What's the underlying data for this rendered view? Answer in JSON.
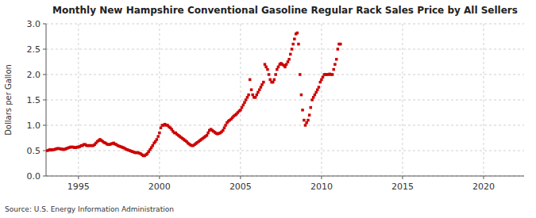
{
  "chart_data": {
    "type": "scatter",
    "title": "Monthly New Hampshire Conventional Gasoline Regular Rack Sales Price by All Sellers",
    "ylabel": "Dollars per Gallon",
    "source": "Source: U.S. Energy Information Administration",
    "color": "#cc0000",
    "marker": "square",
    "grid": true,
    "xlim": [
      1993.0,
      2022.5
    ],
    "ylim": [
      0.0,
      3.0
    ],
    "xticks": [
      1995,
      2000,
      2005,
      2010,
      2015,
      2020
    ],
    "yticks": [
      {
        "value": 0.0,
        "label": "0.0"
      },
      0.5,
      {
        "value": 1.0,
        "label": "1.0"
      },
      1.5,
      {
        "value": 2.0,
        "label": "2.0"
      },
      2.5,
      {
        "value": 3.0,
        "label": "3.0"
      }
    ],
    "x": [
      1993.08,
      1993.17,
      1993.25,
      1993.33,
      1993.42,
      1993.5,
      1993.58,
      1993.67,
      1993.75,
      1993.83,
      1993.92,
      1994.0,
      1994.08,
      1994.17,
      1994.25,
      1994.33,
      1994.42,
      1994.5,
      1994.58,
      1994.67,
      1994.75,
      1994.83,
      1994.92,
      1995.0,
      1995.08,
      1995.17,
      1995.25,
      1995.33,
      1995.42,
      1995.5,
      1995.58,
      1995.67,
      1995.75,
      1995.83,
      1995.92,
      1996.0,
      1996.08,
      1996.17,
      1996.25,
      1996.33,
      1996.42,
      1996.5,
      1996.58,
      1996.67,
      1996.75,
      1996.83,
      1996.92,
      1997.0,
      1997.08,
      1997.17,
      1997.25,
      1997.33,
      1997.42,
      1997.5,
      1997.58,
      1997.67,
      1997.75,
      1997.83,
      1997.92,
      1998.0,
      1998.08,
      1998.17,
      1998.25,
      1998.33,
      1998.42,
      1998.5,
      1998.58,
      1998.67,
      1998.75,
      1998.83,
      1998.92,
      1999.0,
      1999.08,
      1999.17,
      1999.25,
      1999.33,
      1999.42,
      1999.5,
      1999.58,
      1999.67,
      1999.75,
      1999.83,
      1999.92,
      2000.0,
      2000.08,
      2000.17,
      2000.25,
      2000.33,
      2000.42,
      2000.5,
      2000.58,
      2000.67,
      2000.75,
      2000.83,
      2000.92,
      2001.0,
      2001.08,
      2001.17,
      2001.25,
      2001.33,
      2001.42,
      2001.5,
      2001.58,
      2001.67,
      2001.75,
      2001.83,
      2001.92,
      2002.0,
      2002.08,
      2002.17,
      2002.25,
      2002.33,
      2002.42,
      2002.5,
      2002.58,
      2002.67,
      2002.75,
      2002.83,
      2002.92,
      2003.0,
      2003.08,
      2003.17,
      2003.25,
      2003.33,
      2003.42,
      2003.5,
      2003.58,
      2003.67,
      2003.75,
      2003.83,
      2003.92,
      2004.0,
      2004.08,
      2004.17,
      2004.25,
      2004.33,
      2004.42,
      2004.5,
      2004.58,
      2004.67,
      2004.75,
      2004.83,
      2004.92,
      2005.0,
      2005.08,
      2005.17,
      2005.25,
      2005.33,
      2005.42,
      2005.5,
      2005.58,
      2005.67,
      2005.75,
      2005.83,
      2005.92,
      2006.0,
      2006.08,
      2006.17,
      2006.25,
      2006.33,
      2006.42,
      2006.5,
      2006.58,
      2006.67,
      2006.75,
      2006.83,
      2006.92,
      2007.0,
      2007.08,
      2007.17,
      2007.25,
      2007.33,
      2007.42,
      2007.5,
      2007.58,
      2007.67,
      2007.75,
      2007.83,
      2007.92,
      2008.0,
      2008.08,
      2008.17,
      2008.25,
      2008.33,
      2008.42,
      2008.5,
      2008.58,
      2008.67,
      2008.75,
      2008.83,
      2008.92,
      2009.0,
      2009.08,
      2009.17,
      2009.25,
      2009.33,
      2009.42,
      2009.5,
      2009.58,
      2009.67,
      2009.75,
      2009.83,
      2009.92,
      2010.0,
      2010.08,
      2010.17,
      2010.25,
      2010.33,
      2010.42,
      2010.5,
      2010.58,
      2010.67,
      2010.75,
      2010.83,
      2010.92,
      2011.0,
      2011.08,
      2011.17
    ],
    "values": [
      0.5,
      0.51,
      0.52,
      0.51,
      0.52,
      0.52,
      0.53,
      0.54,
      0.54,
      0.54,
      0.53,
      0.53,
      0.52,
      0.53,
      0.54,
      0.55,
      0.56,
      0.57,
      0.57,
      0.57,
      0.56,
      0.56,
      0.57,
      0.57,
      0.58,
      0.6,
      0.6,
      0.62,
      0.62,
      0.6,
      0.6,
      0.6,
      0.6,
      0.6,
      0.6,
      0.62,
      0.65,
      0.68,
      0.7,
      0.72,
      0.7,
      0.68,
      0.66,
      0.65,
      0.63,
      0.62,
      0.62,
      0.63,
      0.64,
      0.65,
      0.63,
      0.62,
      0.6,
      0.59,
      0.58,
      0.57,
      0.56,
      0.55,
      0.53,
      0.52,
      0.51,
      0.5,
      0.49,
      0.48,
      0.47,
      0.46,
      0.46,
      0.46,
      0.45,
      0.44,
      0.42,
      0.4,
      0.4,
      0.42,
      0.44,
      0.48,
      0.52,
      0.56,
      0.6,
      0.65,
      0.68,
      0.72,
      0.78,
      0.85,
      0.95,
      1.0,
      1.0,
      1.02,
      1.0,
      1.0,
      0.97,
      0.95,
      0.92,
      0.88,
      0.85,
      0.85,
      0.82,
      0.8,
      0.78,
      0.76,
      0.74,
      0.72,
      0.7,
      0.68,
      0.65,
      0.63,
      0.61,
      0.6,
      0.6,
      0.62,
      0.64,
      0.66,
      0.68,
      0.7,
      0.72,
      0.74,
      0.76,
      0.78,
      0.8,
      0.85,
      0.9,
      0.92,
      0.9,
      0.88,
      0.86,
      0.84,
      0.83,
      0.84,
      0.85,
      0.87,
      0.9,
      0.95,
      1.0,
      1.05,
      1.08,
      1.1,
      1.12,
      1.15,
      1.18,
      1.2,
      1.22,
      1.25,
      1.28,
      1.3,
      1.35,
      1.4,
      1.45,
      1.5,
      1.55,
      1.6,
      1.9,
      1.7,
      1.6,
      1.55,
      1.55,
      1.6,
      1.65,
      1.7,
      1.75,
      1.8,
      1.85,
      2.2,
      2.15,
      2.1,
      2.0,
      1.9,
      1.85,
      1.85,
      1.9,
      2.0,
      2.1,
      2.15,
      2.2,
      2.22,
      2.2,
      2.18,
      2.15,
      2.2,
      2.25,
      2.3,
      2.4,
      2.5,
      2.6,
      2.7,
      2.8,
      2.82,
      2.6,
      2.0,
      1.6,
      1.3,
      1.1,
      1.0,
      1.05,
      1.1,
      1.2,
      1.35,
      1.5,
      1.55,
      1.6,
      1.65,
      1.7,
      1.75,
      1.85,
      1.9,
      1.95,
      2.0,
      2.0,
      2.0,
      2.0,
      2.01,
      2.0,
      2.0,
      2.1,
      2.2,
      2.3,
      2.5,
      2.6,
      2.6
    ]
  }
}
